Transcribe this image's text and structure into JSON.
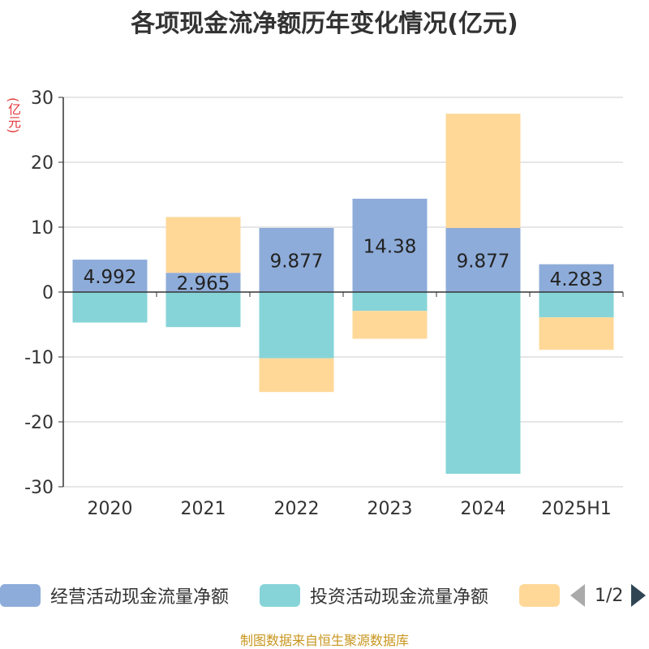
{
  "title": "各项现金流净额历年变化情况(亿元)",
  "unit_label": "(亿元)",
  "source_text": "制图数据来自恒生聚源数据库",
  "legend": {
    "items": [
      {
        "label": "经营活动现金流量净额",
        "color": "#8eacd9"
      },
      {
        "label": "投资活动现金流量净额",
        "color": "#86d4d8"
      },
      {
        "label": "",
        "color": "#ffd898"
      }
    ],
    "pager": "1/2"
  },
  "chart_data": {
    "type": "bar",
    "stacked": true,
    "categories": [
      "2020",
      "2021",
      "2022",
      "2023",
      "2024",
      "2025H1"
    ],
    "ylim": [
      -30,
      30
    ],
    "yticks": [
      30,
      20,
      10,
      0,
      -10,
      -20,
      -30
    ],
    "grid": true,
    "series": [
      {
        "name": "经营活动现金流量净额",
        "color": "#8eacd9",
        "values": [
          4.992,
          2.965,
          9.877,
          14.38,
          9.877,
          4.283
        ],
        "labels": [
          "4.992",
          "2.965",
          "9.877",
          "14.38",
          "9.877",
          "4.283"
        ]
      },
      {
        "name": "投资活动现金流量净额",
        "color": "#86d4d8",
        "values": [
          -4.7,
          -5.4,
          -10.2,
          -2.9,
          -28.0,
          -3.9
        ]
      },
      {
        "color": "#ffd898",
        "values": [
          0.0,
          8.6,
          -5.2,
          -4.3,
          17.6,
          -5.0
        ]
      }
    ]
  }
}
